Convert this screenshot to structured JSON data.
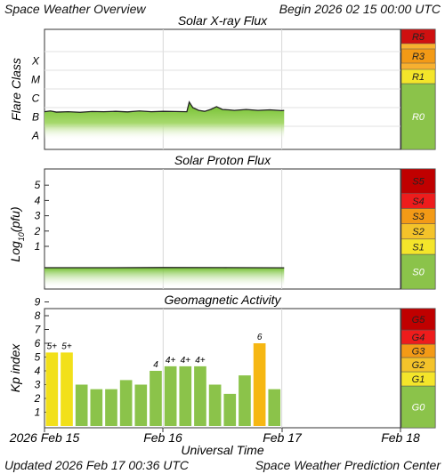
{
  "header": {
    "title": "Space Weather Overview",
    "begin": "Begin 2026 02 15 00:00 UTC"
  },
  "footer": {
    "updated": "Updated 2026 Feb 17 00:36 UTC",
    "credit": "Space Weather Prediction Center"
  },
  "xaxis": {
    "title": "Universal Time",
    "labels": [
      "2026 Feb 15",
      "Feb 16",
      "Feb 17",
      "Feb 18"
    ]
  },
  "chart_data": [
    {
      "type": "area",
      "title": "Solar X-ray Flux",
      "ylabel": "Flare Class",
      "y_tick_labels": [
        "A",
        "B",
        "C",
        "M",
        "X"
      ],
      "scale": [
        "R0",
        "R1",
        "R3",
        "R5"
      ],
      "scale_colors": {
        "R0": "#8bc34a",
        "R1": "#f4e52a",
        "R3": "#f39a16",
        "R5": "#cf1010"
      },
      "x_days": [
        0,
        0.05,
        0.1,
        0.2,
        0.3,
        0.4,
        0.5,
        0.6,
        0.7,
        0.8,
        0.9,
        1.0,
        1.1,
        1.2,
        1.22,
        1.25,
        1.3,
        1.35,
        1.4,
        1.45,
        1.5,
        1.55,
        1.6,
        1.7,
        1.8,
        1.9,
        2.0,
        2.02
      ],
      "values_class": [
        1.78,
        1.82,
        1.76,
        1.78,
        1.75,
        1.79,
        1.78,
        1.8,
        1.77,
        1.82,
        1.78,
        1.8,
        1.79,
        1.78,
        2.3,
        2.0,
        1.85,
        1.8,
        1.9,
        2.05,
        1.9,
        1.88,
        1.85,
        1.9,
        1.85,
        1.88,
        1.84,
        1.85
      ]
    },
    {
      "type": "area",
      "title": "Solar Proton Flux",
      "ylabel": "Log10(pfu)",
      "y_tick_labels": [
        "1",
        "2",
        "3",
        "4",
        "5"
      ],
      "scale": [
        "S0",
        "S1",
        "S2",
        "S3",
        "S4",
        "S5"
      ],
      "scale_colors": {
        "S0": "#8bc34a",
        "S1": "#f4e52a",
        "S2": "#f4c32a",
        "S3": "#f39a16",
        "S4": "#ee1c1c",
        "S5": "#c00000"
      },
      "x_days": [
        0,
        0.5,
        1.0,
        1.5,
        2.02
      ],
      "values_log": [
        -1.25,
        -1.25,
        -1.27,
        -1.26,
        -1.24
      ]
    },
    {
      "type": "bar",
      "title": "Geomagnetic Activity",
      "ylabel": "Kp index",
      "y_tick_labels": [
        "1",
        "2",
        "3",
        "4",
        "5",
        "6",
        "7",
        "8",
        "9"
      ],
      "scale": [
        "G0",
        "G1",
        "G2",
        "G3",
        "G4",
        "G5"
      ],
      "scale_colors": {
        "G0": "#8bc34a",
        "G1": "#f4e52a",
        "G2": "#f4c32a",
        "G3": "#f39a16",
        "G4": "#ee1c1c",
        "G5": "#c00000"
      },
      "bar_colors": {
        "quiet": "#8bc34a",
        "storm": "#f2e01a",
        "strong": "#f6b713"
      },
      "values": [
        5.33,
        5.33,
        3.0,
        2.67,
        2.67,
        3.33,
        3.0,
        4.0,
        4.33,
        4.33,
        4.33,
        3.0,
        2.33,
        3.67,
        6.0,
        2.67
      ],
      "labels": [
        "5+",
        "5+",
        "",
        "",
        "",
        "",
        "",
        "4",
        "4+",
        "4+",
        "4+",
        "",
        "",
        "",
        "6",
        ""
      ]
    }
  ]
}
